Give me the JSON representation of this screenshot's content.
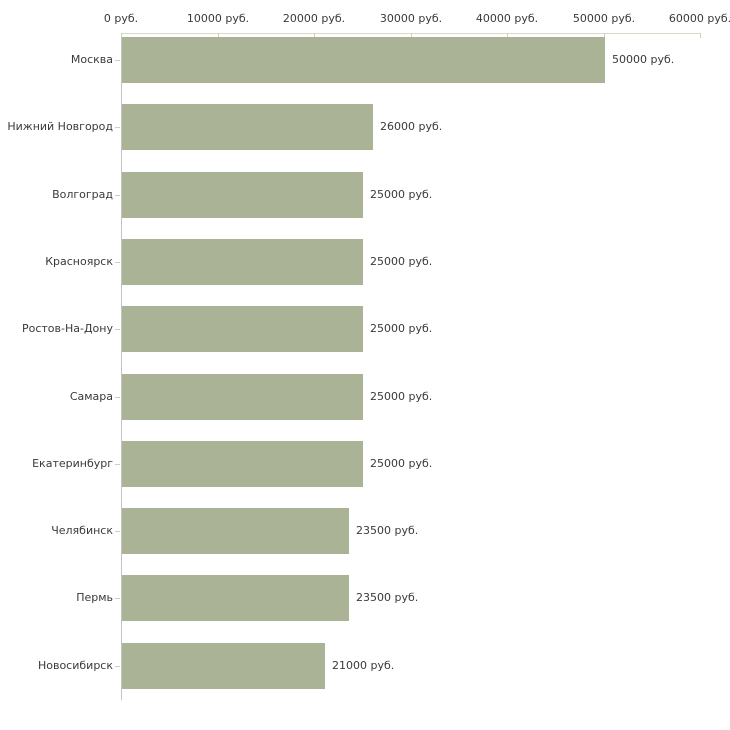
{
  "chart_data": {
    "type": "bar",
    "orientation": "horizontal",
    "title": "",
    "categories": [
      "Москва",
      "Нижний Новгород",
      "Волгоград",
      "Красноярск",
      "Ростов-На-Дону",
      "Самара",
      "Екатеринбург",
      "Челябинск",
      "Пермь",
      "Новосибирск"
    ],
    "values": [
      50000,
      26000,
      25000,
      25000,
      25000,
      25000,
      25000,
      23500,
      23500,
      21000
    ],
    "value_labels": [
      "50000 руб.",
      "26000 руб.",
      "25000 руб.",
      "25000 руб.",
      "25000 руб.",
      "25000 руб.",
      "25000 руб.",
      "23500 руб.",
      "23500 руб.",
      "21000 руб."
    ],
    "x_tick_labels": [
      "0 руб.",
      "10000 руб.",
      "20000 руб.",
      "30000 руб.",
      "40000 руб.",
      "50000 руб.",
      "60000 руб."
    ],
    "x_tick_values": [
      0,
      10000,
      20000,
      30000,
      40000,
      50000,
      60000
    ],
    "xlim": [
      0,
      60000
    ],
    "x_axis_position": "top",
    "grid": false,
    "legend": false,
    "colors": {
      "bar": "#abb396",
      "h_axis_line": "#d7d9c9",
      "v_axis_line": "#c3c3c3",
      "tick": "#ccd0b4",
      "text": "#3a3a3a",
      "background": "#ffffff"
    }
  }
}
